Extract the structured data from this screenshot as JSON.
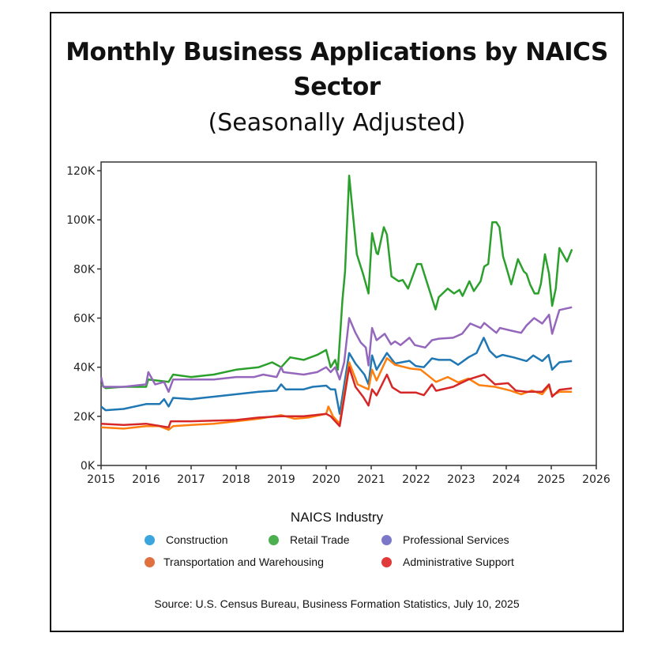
{
  "chart_data": {
    "type": "line",
    "title": "Monthly Business Applications by NAICS Sector",
    "subtitle": "(Seasonally Adjusted)",
    "xlabel": "",
    "ylabel": "",
    "xlim": [
      2015,
      2026
    ],
    "ylim": [
      0,
      123
    ],
    "x_ticks": [
      "2015",
      "2016",
      "2017",
      "2018",
      "2019",
      "2020",
      "2021",
      "2022",
      "2023",
      "2024",
      "2025",
      "2026"
    ],
    "y_ticks": [
      "0K",
      "20K",
      "40K",
      "60K",
      "80K",
      "100K",
      "120K"
    ],
    "y_tick_values": [
      0,
      20,
      40,
      60,
      80,
      100,
      120
    ],
    "grid": false,
    "legend_title": "NAICS Industry",
    "legend_position": "bottom",
    "source": "Source: U.S. Census Bureau, Business Formation Statistics, July 10, 2025",
    "series": [
      {
        "name": "Construction",
        "color": "#1f77b4",
        "legend_color": "#3aa6dd",
        "points": [
          [
            2015,
            24
          ],
          [
            2015.1,
            22.5
          ],
          [
            2015.5,
            23
          ],
          [
            2016,
            25
          ],
          [
            2016.3,
            25
          ],
          [
            2016.4,
            27
          ],
          [
            2016.5,
            24
          ],
          [
            2016.6,
            27.5
          ],
          [
            2017,
            27
          ],
          [
            2017.5,
            28
          ],
          [
            2018,
            29
          ],
          [
            2018.5,
            30
          ],
          [
            2018.9,
            30.5
          ],
          [
            2019,
            33
          ],
          [
            2019.1,
            31
          ],
          [
            2019.5,
            31
          ],
          [
            2019.7,
            32
          ],
          [
            2020,
            32.5
          ],
          [
            2020.1,
            31
          ],
          [
            2020.2,
            31
          ],
          [
            2020.3,
            21
          ],
          [
            2020.51,
            45.8
          ],
          [
            2020.65,
            41.5
          ],
          [
            2020.85,
            37
          ],
          [
            2020.94,
            33
          ],
          [
            2021.02,
            44.8
          ],
          [
            2021.12,
            39
          ],
          [
            2021.35,
            45.8
          ],
          [
            2021.53,
            41.5
          ],
          [
            2021.85,
            42.6
          ],
          [
            2021.99,
            40.5
          ],
          [
            2022.17,
            40
          ],
          [
            2022.35,
            43.6
          ],
          [
            2022.5,
            43
          ],
          [
            2022.76,
            43
          ],
          [
            2022.93,
            41
          ],
          [
            2023.16,
            44
          ],
          [
            2023.34,
            45.8
          ],
          [
            2023.5,
            52
          ],
          [
            2023.63,
            46.7
          ],
          [
            2023.78,
            44
          ],
          [
            2023.92,
            45
          ],
          [
            2024.16,
            44
          ],
          [
            2024.45,
            42.5
          ],
          [
            2024.6,
            44.8
          ],
          [
            2024.8,
            42.5
          ],
          [
            2024.94,
            45
          ],
          [
            2025.02,
            39
          ],
          [
            2025.18,
            42
          ],
          [
            2025.46,
            42.5
          ]
        ]
      },
      {
        "name": "Retail Trade",
        "color": "#2ca02c",
        "legend_color": "#4caf50",
        "points": [
          [
            2015,
            33
          ],
          [
            2015.1,
            31.5
          ],
          [
            2015.5,
            32
          ],
          [
            2016,
            32
          ],
          [
            2016.05,
            35
          ],
          [
            2016.5,
            34
          ],
          [
            2016.6,
            37
          ],
          [
            2017,
            36
          ],
          [
            2017.5,
            37
          ],
          [
            2018,
            39
          ],
          [
            2018.5,
            40
          ],
          [
            2018.8,
            42
          ],
          [
            2019,
            40
          ],
          [
            2019.2,
            44
          ],
          [
            2019.5,
            43
          ],
          [
            2019.8,
            45
          ],
          [
            2020,
            47
          ],
          [
            2020.1,
            40
          ],
          [
            2020.2,
            43
          ],
          [
            2020.26,
            39
          ],
          [
            2020.36,
            67
          ],
          [
            2020.42,
            79
          ],
          [
            2020.51,
            118
          ],
          [
            2020.68,
            86
          ],
          [
            2020.82,
            78
          ],
          [
            2020.94,
            70
          ],
          [
            2021.02,
            94.6
          ],
          [
            2021.12,
            86.5
          ],
          [
            2021.15,
            86
          ],
          [
            2021.28,
            97
          ],
          [
            2021.35,
            94
          ],
          [
            2021.45,
            77
          ],
          [
            2021.61,
            75
          ],
          [
            2021.7,
            75.5
          ],
          [
            2021.82,
            72
          ],
          [
            2022.02,
            82
          ],
          [
            2022.11,
            82
          ],
          [
            2022.23,
            75
          ],
          [
            2022.43,
            63.5
          ],
          [
            2022.5,
            68.5
          ],
          [
            2022.7,
            72
          ],
          [
            2022.84,
            70
          ],
          [
            2022.96,
            71.5
          ],
          [
            2023.03,
            69
          ],
          [
            2023.18,
            75
          ],
          [
            2023.28,
            71
          ],
          [
            2023.43,
            75
          ],
          [
            2023.51,
            81
          ],
          [
            2023.6,
            82
          ],
          [
            2023.69,
            99
          ],
          [
            2023.78,
            99
          ],
          [
            2023.85,
            97
          ],
          [
            2023.93,
            85
          ],
          [
            2023.98,
            82
          ],
          [
            2024.11,
            73.7
          ],
          [
            2024.26,
            84
          ],
          [
            2024.39,
            79
          ],
          [
            2024.45,
            78
          ],
          [
            2024.53,
            73.7
          ],
          [
            2024.63,
            70
          ],
          [
            2024.71,
            70
          ],
          [
            2024.77,
            74
          ],
          [
            2024.86,
            86
          ],
          [
            2024.95,
            78
          ],
          [
            2025.02,
            65
          ],
          [
            2025.1,
            72
          ],
          [
            2025.18,
            88.5
          ],
          [
            2025.35,
            83
          ],
          [
            2025.46,
            88
          ]
        ]
      },
      {
        "name": "Professional Services",
        "color": "#9467bd",
        "legend_color": "#7b78c9",
        "points": [
          [
            2015,
            36
          ],
          [
            2015.05,
            32
          ],
          [
            2015.5,
            32
          ],
          [
            2016,
            33
          ],
          [
            2016.05,
            38
          ],
          [
            2016.2,
            33
          ],
          [
            2016.4,
            34
          ],
          [
            2016.5,
            30
          ],
          [
            2016.6,
            35
          ],
          [
            2017,
            35
          ],
          [
            2017.5,
            35
          ],
          [
            2018,
            36
          ],
          [
            2018.4,
            36
          ],
          [
            2018.6,
            37
          ],
          [
            2018.9,
            36
          ],
          [
            2019,
            40
          ],
          [
            2019.05,
            38
          ],
          [
            2019.5,
            37
          ],
          [
            2019.8,
            38
          ],
          [
            2020,
            40
          ],
          [
            2020.1,
            38
          ],
          [
            2020.2,
            40
          ],
          [
            2020.3,
            35
          ],
          [
            2020.4,
            42
          ],
          [
            2020.51,
            60
          ],
          [
            2020.65,
            54
          ],
          [
            2020.77,
            50
          ],
          [
            2020.88,
            48
          ],
          [
            2020.94,
            40.7
          ],
          [
            2021.02,
            56
          ],
          [
            2021.12,
            51
          ],
          [
            2021.3,
            53.6
          ],
          [
            2021.44,
            49.3
          ],
          [
            2021.53,
            50.5
          ],
          [
            2021.65,
            49
          ],
          [
            2021.85,
            52
          ],
          [
            2021.97,
            49
          ],
          [
            2022.2,
            48
          ],
          [
            2022.35,
            51
          ],
          [
            2022.5,
            51.6
          ],
          [
            2022.82,
            52
          ],
          [
            2023.02,
            53.6
          ],
          [
            2023.2,
            57.8
          ],
          [
            2023.43,
            56
          ],
          [
            2023.51,
            58
          ],
          [
            2023.78,
            54
          ],
          [
            2023.86,
            56
          ],
          [
            2024.09,
            55
          ],
          [
            2024.33,
            54
          ],
          [
            2024.45,
            57
          ],
          [
            2024.62,
            60
          ],
          [
            2024.8,
            57.8
          ],
          [
            2024.95,
            61.4
          ],
          [
            2025.02,
            53.6
          ],
          [
            2025.18,
            63.3
          ],
          [
            2025.46,
            64.4
          ]
        ]
      },
      {
        "name": "Transportation and Warehousing",
        "color": "#ff7f0e",
        "legend_color": "#e07040",
        "points": [
          [
            2015,
            15.5
          ],
          [
            2015.5,
            15
          ],
          [
            2016,
            16
          ],
          [
            2016.3,
            16
          ],
          [
            2016.5,
            14.5
          ],
          [
            2016.6,
            16
          ],
          [
            2017,
            16.5
          ],
          [
            2017.5,
            17
          ],
          [
            2018,
            18
          ],
          [
            2018.5,
            19
          ],
          [
            2019,
            20.5
          ],
          [
            2019.3,
            19
          ],
          [
            2019.6,
            19.5
          ],
          [
            2020,
            21
          ],
          [
            2020.05,
            24
          ],
          [
            2020.15,
            20
          ],
          [
            2020.3,
            17
          ],
          [
            2020.51,
            42
          ],
          [
            2020.7,
            33
          ],
          [
            2020.94,
            31
          ],
          [
            2021.02,
            39
          ],
          [
            2021.12,
            34.6
          ],
          [
            2021.35,
            43.7
          ],
          [
            2021.53,
            41
          ],
          [
            2021.88,
            39.4
          ],
          [
            2022.1,
            39
          ],
          [
            2022.44,
            34
          ],
          [
            2022.7,
            36
          ],
          [
            2022.93,
            33.8
          ],
          [
            2023.16,
            35.4
          ],
          [
            2023.4,
            32.7
          ],
          [
            2023.75,
            32
          ],
          [
            2024.09,
            30.5
          ],
          [
            2024.33,
            29
          ],
          [
            2024.57,
            30.5
          ],
          [
            2024.8,
            29
          ],
          [
            2024.95,
            32.5
          ],
          [
            2025.02,
            28.5
          ],
          [
            2025.18,
            30
          ],
          [
            2025.46,
            30
          ]
        ]
      },
      {
        "name": "Administrative Support",
        "color": "#d62728",
        "legend_color": "#e03a3a",
        "points": [
          [
            2015,
            17
          ],
          [
            2015.5,
            16.5
          ],
          [
            2016,
            17
          ],
          [
            2016.5,
            15.5
          ],
          [
            2016.55,
            18
          ],
          [
            2017,
            18
          ],
          [
            2018,
            18.5
          ],
          [
            2018.5,
            19.5
          ],
          [
            2019,
            20
          ],
          [
            2019.5,
            20
          ],
          [
            2020,
            21
          ],
          [
            2020.1,
            20
          ],
          [
            2020.3,
            16
          ],
          [
            2020.51,
            40
          ],
          [
            2020.65,
            32
          ],
          [
            2020.82,
            28
          ],
          [
            2020.94,
            24.4
          ],
          [
            2021.02,
            31
          ],
          [
            2021.12,
            28.5
          ],
          [
            2021.35,
            37
          ],
          [
            2021.47,
            31.8
          ],
          [
            2021.65,
            29.7
          ],
          [
            2021.99,
            29.7
          ],
          [
            2022.17,
            28.6
          ],
          [
            2022.35,
            33
          ],
          [
            2022.44,
            30.4
          ],
          [
            2022.82,
            32
          ],
          [
            2023.16,
            35
          ],
          [
            2023.51,
            37
          ],
          [
            2023.75,
            33
          ],
          [
            2024.04,
            33.5
          ],
          [
            2024.21,
            30.5
          ],
          [
            2024.45,
            30
          ],
          [
            2024.8,
            30
          ],
          [
            2024.95,
            33
          ],
          [
            2025.02,
            28
          ],
          [
            2025.18,
            30.8
          ],
          [
            2025.46,
            31.4
          ]
        ]
      }
    ]
  }
}
